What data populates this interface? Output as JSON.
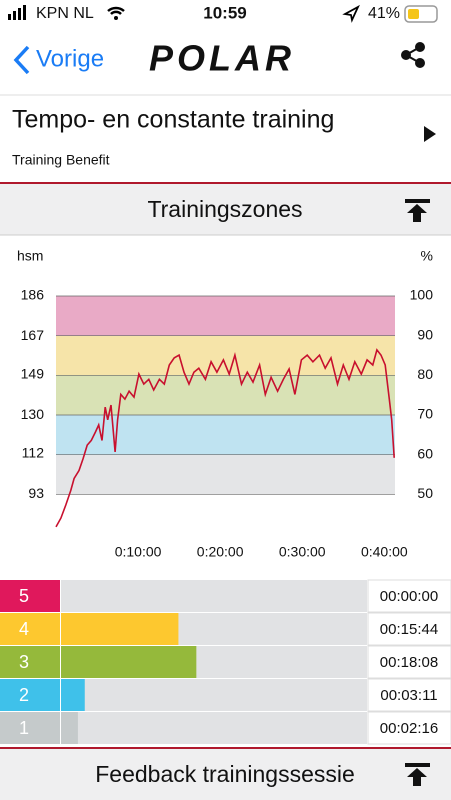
{
  "status_bar": {
    "carrier": "KPN NL",
    "time": "10:59",
    "battery": "41%"
  },
  "nav": {
    "back": "Vorige",
    "logo": "POLAR"
  },
  "header": {
    "title": "Tempo- en constante training",
    "subtitle": "Training Benefit"
  },
  "sections": [
    "Trainingszones",
    "Feedback trainingssessie"
  ],
  "chart_data": [
    {
      "type": "line",
      "color": "#c8102e",
      "ylabel": "%",
      "y2label": "hsm",
      "x": [
        0,
        0.6,
        1.2,
        1.8,
        2.2,
        2.8,
        3.3,
        3.8,
        4.3,
        4.8,
        5.2,
        5.6,
        6.0,
        6.3,
        6.7,
        7.2,
        7.5,
        7.9,
        8.4,
        8.9,
        9.5,
        10.1,
        10.7,
        11.3,
        11.9,
        12.6,
        13.2,
        13.8,
        14.4,
        15.0,
        15.6,
        16.2,
        16.8,
        17.4,
        18.2,
        18.9,
        19.6,
        20.4,
        21.1,
        21.8,
        22.6,
        23.3,
        24.0,
        24.8,
        25.5,
        26.2,
        27.0,
        27.7,
        28.4,
        29.1,
        29.9,
        30.6,
        31.3,
        32.1,
        32.8,
        33.5,
        34.3,
        35.0,
        35.7,
        36.4,
        37.2,
        37.9,
        38.6,
        39.1,
        39.6,
        40.1,
        40.6,
        40.9,
        41.2
      ],
      "values": [
        41.8,
        44,
        47.3,
        51,
        54,
        56,
        59,
        62.4,
        63.6,
        65.7,
        67.5,
        63.6,
        72,
        68.8,
        72.5,
        60.7,
        68.8,
        75.2,
        74,
        76,
        74.5,
        80.3,
        77.8,
        79,
        76.3,
        79,
        77.8,
        82.6,
        84.4,
        85.1,
        80.8,
        77.8,
        80.8,
        81.8,
        79,
        83.4,
        80.8,
        83.9,
        80.3,
        85.1,
        77.8,
        80.8,
        78.3,
        82.6,
        75.2,
        79.5,
        76,
        79,
        81.6,
        75.2,
        83.9,
        85.1,
        83.4,
        85.1,
        81.8,
        84.4,
        77.8,
        82.6,
        79,
        83.4,
        80.3,
        83.9,
        82.6,
        86.4,
        85.1,
        82.6,
        74,
        68.8,
        59.2
      ],
      "xlim": [
        0,
        41.3
      ],
      "xticks": [
        {
          "value": 10,
          "label": "0:10:00"
        },
        {
          "value": 20,
          "label": "0:20:00"
        },
        {
          "value": 30,
          "label": "0:30:00"
        },
        {
          "value": 40,
          "label": "0:40:00"
        }
      ],
      "ylim": [
        40,
        100
      ],
      "yticks": [
        50,
        60,
        70,
        80,
        90,
        100
      ],
      "y2lim": [
        74.4,
        186
      ],
      "y2ticks": [
        93,
        112,
        130,
        149,
        167,
        186
      ],
      "zone_colors": [
        "#e4e5e7",
        "#bfe3f1",
        "#d9e2b5",
        "#f6e4a9",
        "#e9aac6"
      ],
      "grid": true
    },
    {
      "type": "bar",
      "orientation": "horizontal",
      "categories": [
        "5",
        "4",
        "3",
        "2",
        "1"
      ],
      "values": [
        0,
        944,
        1088,
        191,
        136
      ],
      "value_labels": [
        "00:00:00",
        "00:15:44",
        "00:18:08",
        "00:03:11",
        "00:02:16"
      ],
      "colors": [
        "#e0185c",
        "#fdc82f",
        "#95b93b",
        "#3fc1ea",
        "#c5cacb"
      ],
      "xlim": [
        0,
        2460
      ]
    }
  ]
}
